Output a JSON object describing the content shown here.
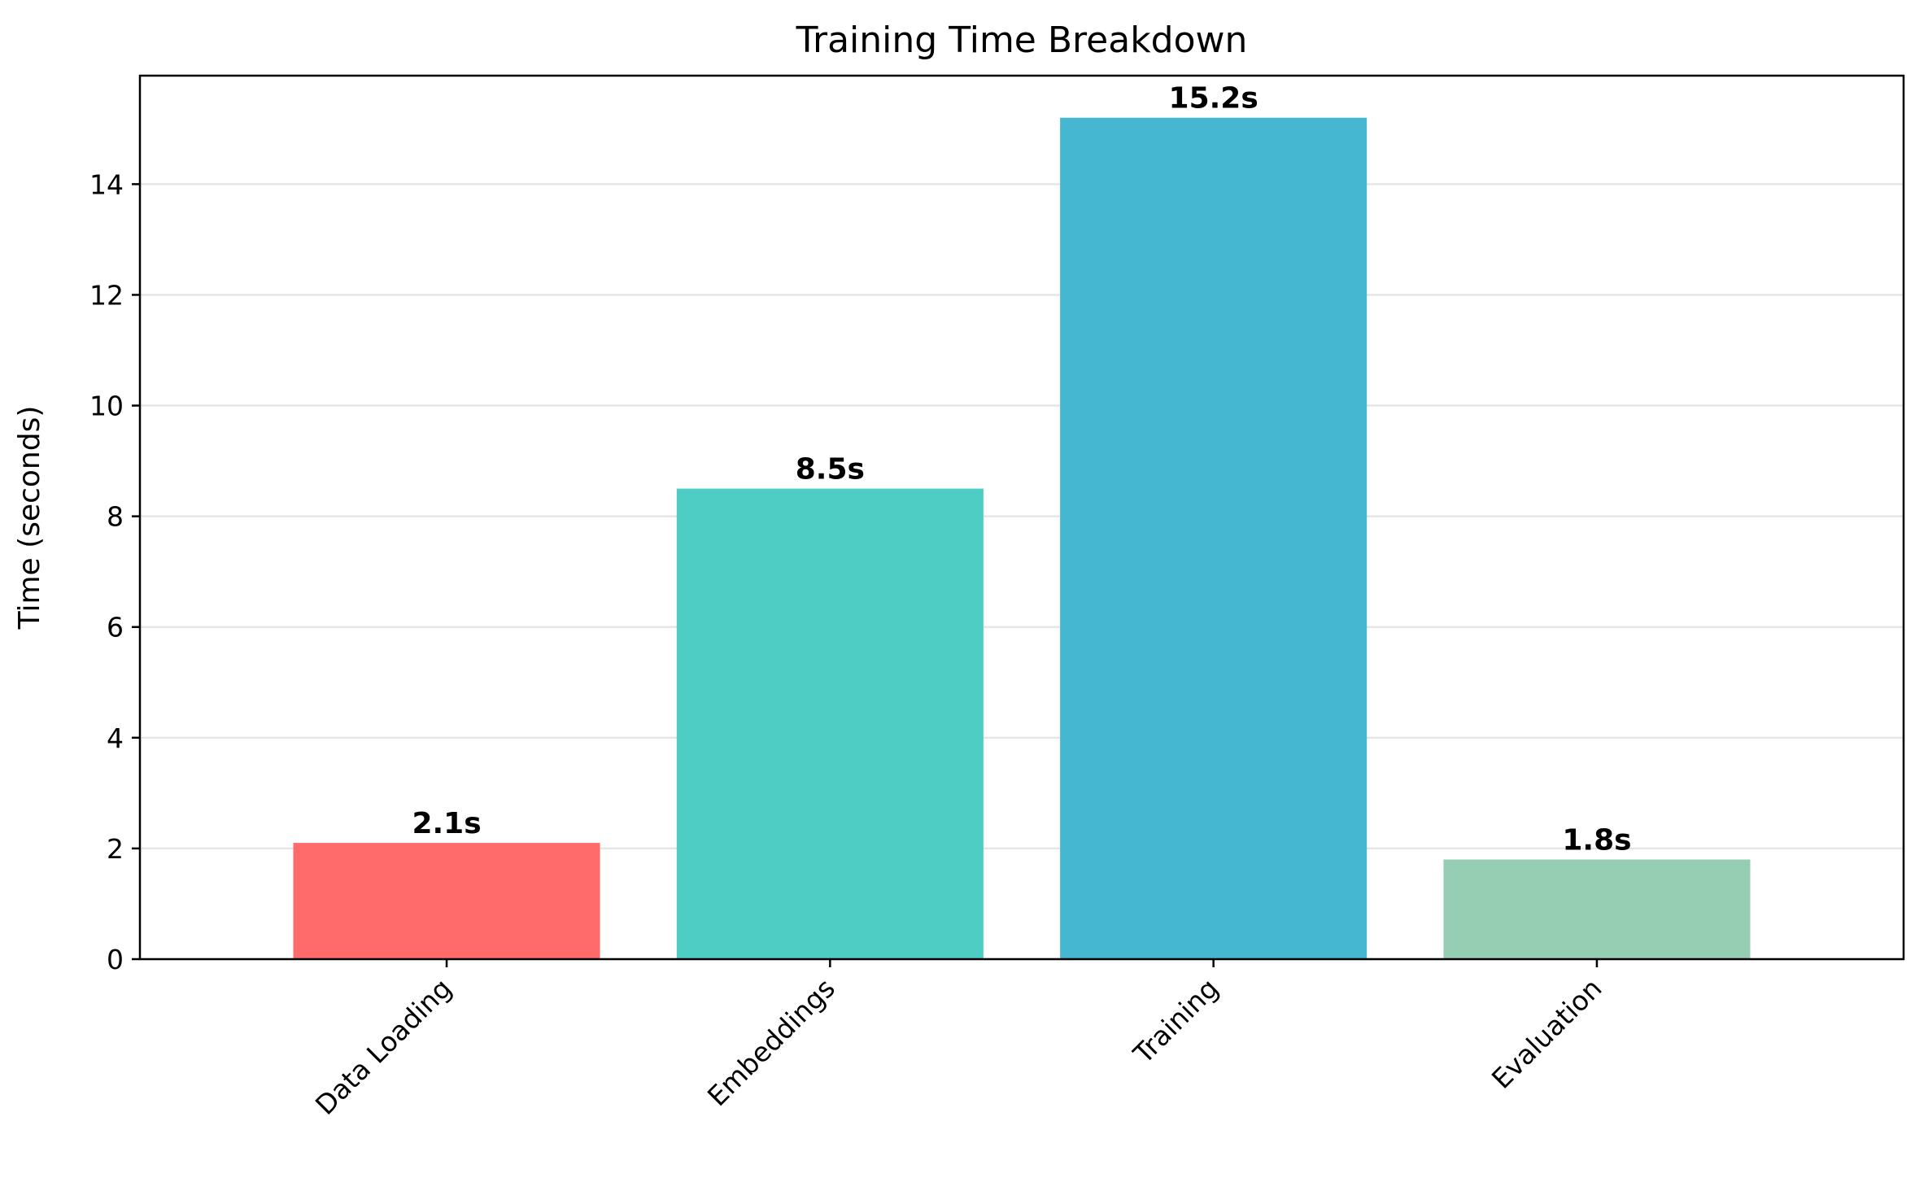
{
  "chart_data": {
    "type": "bar",
    "title": "Training Time Breakdown",
    "xlabel": "",
    "ylabel": "Time (seconds)",
    "categories": [
      "Data Loading",
      "Embeddings",
      "Training",
      "Evaluation"
    ],
    "values": [
      2.1,
      8.5,
      15.2,
      1.8
    ],
    "data_labels": [
      "2.1s",
      "8.5s",
      "15.2s",
      "1.8s"
    ],
    "colors": [
      "#FF6B6B",
      "#4ECDC4",
      "#45B7D1",
      "#96CEB4"
    ],
    "ylim": [
      0,
      15.96
    ],
    "yticks": [
      0,
      2,
      4,
      6,
      8,
      10,
      12,
      14
    ],
    "ytick_labels": [
      "0",
      "2",
      "4",
      "6",
      "8",
      "10",
      "12",
      "14"
    ],
    "grid": "y",
    "xtick_rotation": 45,
    "legend": "none"
  }
}
